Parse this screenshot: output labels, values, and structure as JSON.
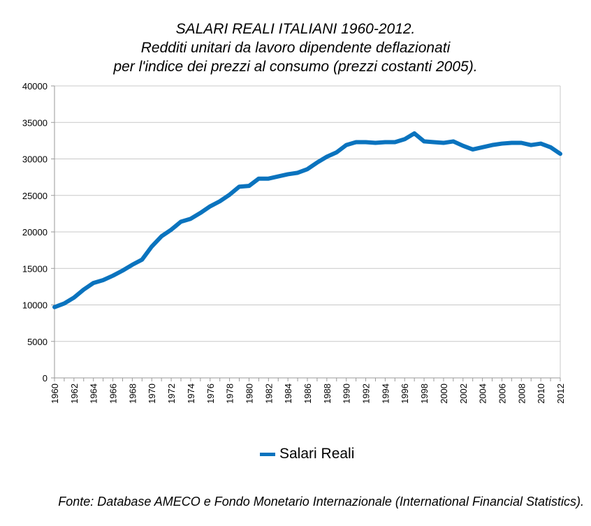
{
  "title_lines": [
    "SALARI REALI ITALIANI 1960-2012.",
    "Redditi unitari da lavoro dipendente deflazionati",
    "per l'indice dei prezzi al consumo (prezzi costanti 2005)."
  ],
  "legend": {
    "label": "Salari Reali"
  },
  "source": "Fonte: Database AMECO e Fondo Monetario Internazionale (International Financial Statistics).",
  "colors": {
    "series": "#0a73be",
    "grid": "#c8c8c8",
    "axis": "#9a9a9a"
  },
  "chart_data": {
    "type": "line",
    "title": "SALARI REALI ITALIANI 1960-2012. Redditi unitari da lavoro dipendente deflazionati per l'indice dei prezzi al consumo (prezzi costanti 2005).",
    "xlabel": "",
    "ylabel": "",
    "ylim": [
      0,
      40000
    ],
    "yticks": [
      0,
      5000,
      10000,
      15000,
      20000,
      25000,
      30000,
      35000,
      40000
    ],
    "x": [
      1960,
      1961,
      1962,
      1963,
      1964,
      1965,
      1966,
      1967,
      1968,
      1969,
      1970,
      1971,
      1972,
      1973,
      1974,
      1975,
      1976,
      1977,
      1978,
      1979,
      1980,
      1981,
      1982,
      1983,
      1984,
      1985,
      1986,
      1987,
      1988,
      1989,
      1990,
      1991,
      1992,
      1993,
      1994,
      1995,
      1996,
      1997,
      1998,
      1999,
      2000,
      2001,
      2002,
      2003,
      2004,
      2005,
      2006,
      2007,
      2008,
      2009,
      2010,
      2011,
      2012
    ],
    "xtick_labels": [
      "1960",
      "1962",
      "1964",
      "1966",
      "1968",
      "1970",
      "1972",
      "1974",
      "1976",
      "1978",
      "1980",
      "1982",
      "1984",
      "1986",
      "1988",
      "1990",
      "1992",
      "1994",
      "1996",
      "1998",
      "2000",
      "2002",
      "2004",
      "2006",
      "2008",
      "2010",
      "2012"
    ],
    "series": [
      {
        "name": "Salari Reali",
        "values": [
          9700,
          10200,
          11000,
          12100,
          13000,
          13400,
          14000,
          14700,
          15500,
          16200,
          18000,
          19400,
          20300,
          21400,
          21800,
          22600,
          23500,
          24200,
          25100,
          26200,
          26300,
          27300,
          27300,
          27600,
          27900,
          28100,
          28600,
          29500,
          30300,
          30900,
          31900,
          32300,
          32300,
          32200,
          32300,
          32300,
          32700,
          33500,
          32400,
          32300,
          32200,
          32400,
          31800,
          31300,
          31600,
          31900,
          32100,
          32200,
          32200,
          31900,
          32100,
          31600,
          30700
        ]
      }
    ],
    "grid": true,
    "legend_position": "bottom"
  }
}
